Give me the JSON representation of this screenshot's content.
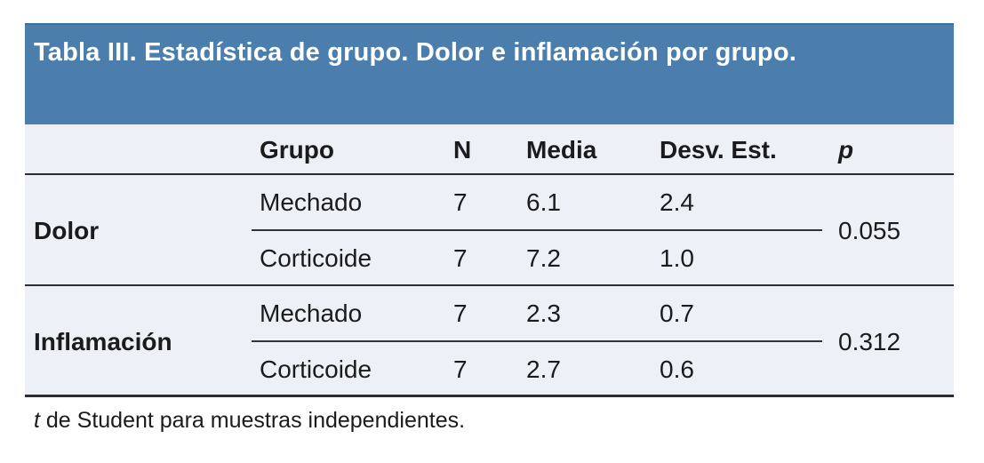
{
  "title": "Tabla III. Estadística de grupo. Dolor e inflamación por grupo.",
  "columns": {
    "group": "Grupo",
    "n": "N",
    "mean": "Media",
    "sd": "Desv. Est.",
    "p": "p"
  },
  "sections": [
    {
      "label": "Dolor",
      "p_value": "0.055",
      "rows": [
        {
          "group": "Mechado",
          "n": "7",
          "mean": "6.1",
          "sd": "2.4"
        },
        {
          "group": "Corticoide",
          "n": "7",
          "mean": "7.2",
          "sd": "1.0"
        }
      ]
    },
    {
      "label": "Inflamación",
      "p_value": "0.312",
      "rows": [
        {
          "group": "Mechado",
          "n": "7",
          "mean": "2.3",
          "sd": "0.7"
        },
        {
          "group": "Corticoide",
          "n": "7",
          "mean": "2.7",
          "sd": "0.6"
        }
      ]
    }
  ],
  "footnote": {
    "stat_symbol": "t",
    "text": " de Student para muestras independientes."
  },
  "colors": {
    "header_bg": "#4b7ead",
    "header_bg_edge": "#3f6f9c",
    "table_bg": "#edf0f6",
    "rule": "#2c2c31",
    "text": "#1b1b1d",
    "title_text": "#ffffff"
  }
}
